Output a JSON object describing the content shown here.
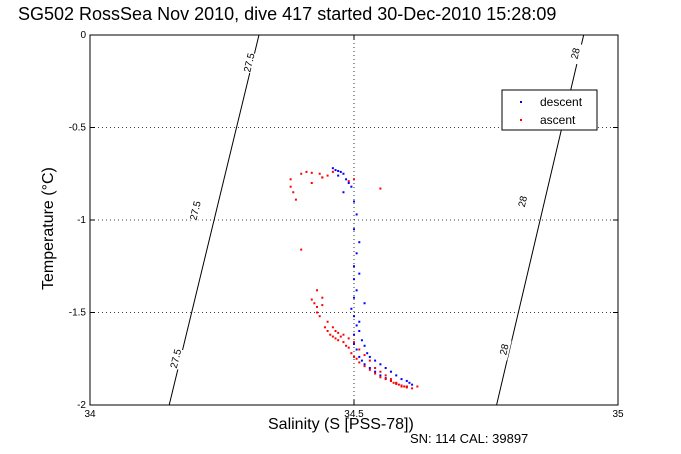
{
  "title": "SG502 RossSea Nov 2010, dive 417 started 30-Dec-2010 15:28:09",
  "footer": "SN: 114  CAL: 39897",
  "chart_data": {
    "type": "scatter",
    "title": "SG502 RossSea Nov 2010, dive 417 started 30-Dec-2010 15:28:09",
    "xlabel": "Salinity (S [PSS-78])",
    "ylabel": "Temperature (°C)",
    "xlim": [
      34,
      35
    ],
    "ylim": [
      -2,
      0
    ],
    "xticks": [
      "34",
      "34.5",
      "35"
    ],
    "yticks": [
      "0",
      "-0.5",
      "-1",
      "-1.5",
      "-2"
    ],
    "grid": true,
    "legend_position": "top-right",
    "contours": [
      {
        "label": "27.5",
        "points": [
          [
            34.15,
            -2.0
          ],
          [
            34.32,
            0.0
          ]
        ],
        "label_positions": [
          [
            34.302,
            -0.15
          ],
          [
            34.2,
            -0.95
          ],
          [
            34.163,
            -1.75
          ]
        ]
      },
      {
        "label": "28",
        "points": [
          [
            34.77,
            -2.0
          ],
          [
            34.935,
            0.0
          ]
        ],
        "label_positions": [
          [
            34.92,
            -0.1
          ],
          [
            34.82,
            -0.9
          ],
          [
            34.785,
            -1.7
          ]
        ]
      }
    ],
    "series": [
      {
        "name": "descent",
        "color": "#0000ff",
        "x": [
          34.46,
          34.465,
          34.47,
          34.475,
          34.48,
          34.47,
          34.485,
          34.49,
          34.48,
          34.495,
          34.5,
          34.505,
          34.5,
          34.51,
          34.505,
          34.5,
          34.51,
          34.5,
          34.505,
          34.5,
          34.495,
          34.5,
          34.505,
          34.51,
          34.515,
          34.52,
          34.525,
          34.53,
          34.54,
          34.55,
          34.56,
          34.57,
          34.58,
          34.59,
          34.6,
          34.605,
          34.61,
          34.6,
          34.59,
          34.58,
          34.57,
          34.56,
          34.55,
          34.54,
          34.53,
          34.52,
          34.515,
          34.51,
          34.505,
          34.5,
          34.52,
          34.51,
          34.5
        ],
        "y": [
          -0.72,
          -0.73,
          -0.735,
          -0.74,
          -0.75,
          -0.76,
          -0.78,
          -0.8,
          -0.85,
          -0.82,
          -0.9,
          -0.97,
          -1.05,
          -1.12,
          -1.18,
          -1.25,
          -1.29,
          -1.32,
          -1.38,
          -1.42,
          -1.48,
          -1.52,
          -1.57,
          -1.6,
          -1.65,
          -1.68,
          -1.72,
          -1.74,
          -1.76,
          -1.78,
          -1.8,
          -1.82,
          -1.84,
          -1.86,
          -1.87,
          -1.88,
          -1.89,
          -1.9,
          -1.895,
          -1.885,
          -1.87,
          -1.855,
          -1.84,
          -1.82,
          -1.8,
          -1.78,
          -1.76,
          -1.74,
          -1.7,
          -1.67,
          -1.45,
          -1.55,
          -1.62
        ]
      },
      {
        "name": "ascent",
        "color": "#ff0000",
        "x": [
          34.38,
          34.4,
          34.41,
          34.42,
          34.435,
          34.44,
          34.45,
          34.46,
          34.38,
          34.385,
          34.39,
          34.42,
          34.44,
          34.49,
          34.5,
          34.55,
          34.4,
          34.43,
          34.44,
          34.43,
          34.45,
          34.46,
          34.465,
          34.47,
          34.48,
          34.49,
          34.5,
          34.51,
          34.52,
          34.53,
          34.54,
          34.55,
          34.56,
          34.57,
          34.58,
          34.59,
          34.6,
          34.61,
          34.62,
          34.42,
          34.425,
          34.43,
          34.435,
          34.44,
          34.445,
          34.45,
          34.455,
          34.46,
          34.465,
          34.47,
          34.475,
          34.48,
          34.485,
          34.49,
          34.495,
          34.5,
          34.505,
          34.51,
          34.52,
          34.53,
          34.54,
          34.55,
          34.56,
          34.57,
          34.575,
          34.58,
          34.585,
          34.59,
          34.595,
          34.6
        ],
        "y": [
          -0.78,
          -0.75,
          -0.74,
          -0.745,
          -0.75,
          -0.77,
          -0.76,
          -0.74,
          -0.82,
          -0.85,
          -0.89,
          -0.8,
          -0.77,
          -0.79,
          -0.78,
          -0.83,
          -1.16,
          -1.38,
          -1.42,
          -1.47,
          -1.55,
          -1.58,
          -1.6,
          -1.61,
          -1.62,
          -1.64,
          -1.66,
          -1.7,
          -1.73,
          -1.76,
          -1.8,
          -1.82,
          -1.84,
          -1.86,
          -1.88,
          -1.9,
          -1.905,
          -1.91,
          -1.9,
          -1.43,
          -1.45,
          -1.5,
          -1.52,
          -1.46,
          -1.58,
          -1.6,
          -1.62,
          -1.63,
          -1.64,
          -1.65,
          -1.63,
          -1.66,
          -1.68,
          -1.69,
          -1.72,
          -1.74,
          -1.75,
          -1.77,
          -1.79,
          -1.81,
          -1.83,
          -1.85,
          -1.86,
          -1.87,
          -1.88,
          -1.885,
          -1.89,
          -1.895,
          -1.9,
          -1.9
        ]
      }
    ]
  }
}
